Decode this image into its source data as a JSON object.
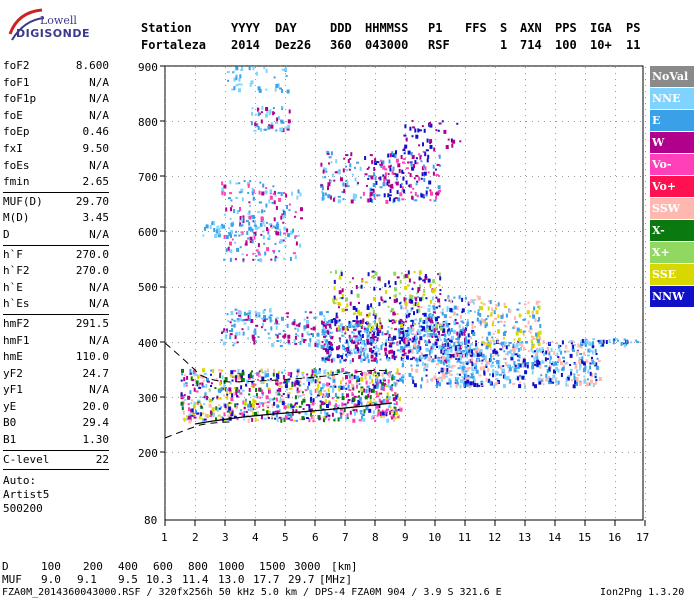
{
  "logo": {
    "company": "Lowell",
    "product": "DIGISONDE"
  },
  "header": {
    "labels": [
      "Station",
      "YYYY",
      "DAY",
      "DDD",
      "HHMMSS",
      "P1",
      "FFS",
      "S",
      "AXN",
      "PPS",
      "IGA",
      "PS"
    ],
    "values": [
      "Fortaleza",
      "2014",
      "Dez26",
      "360",
      "043000",
      "RSF",
      "1",
      "714",
      "100",
      "10+",
      "11"
    ]
  },
  "params": {
    "group1": [
      {
        "name": "foF2",
        "value": "8.600"
      },
      {
        "name": "foF1",
        "value": "N/A"
      },
      {
        "name": "foF1p",
        "value": "N/A"
      },
      {
        "name": "foE",
        "value": "N/A"
      },
      {
        "name": "foEp",
        "value": "0.46"
      },
      {
        "name": "fxI",
        "value": "9.50"
      },
      {
        "name": "foEs",
        "value": "N/A"
      },
      {
        "name": "fmin",
        "value": "2.65"
      }
    ],
    "group2": [
      {
        "name": "MUF(D)",
        "value": "29.70"
      },
      {
        "name": "M(D)",
        "value": "3.45"
      },
      {
        "name": "D",
        "value": "N/A"
      }
    ],
    "group3": [
      {
        "name": "h`F",
        "value": "270.0"
      },
      {
        "name": "h`F2",
        "value": "270.0"
      },
      {
        "name": "h`E",
        "value": "N/A"
      },
      {
        "name": "h`Es",
        "value": "N/A"
      }
    ],
    "group4": [
      {
        "name": "hmF2",
        "value": "291.5"
      },
      {
        "name": "hmF1",
        "value": "N/A"
      },
      {
        "name": "hmE",
        "value": "110.0"
      },
      {
        "name": "yF2",
        "value": "24.7"
      },
      {
        "name": "yF1",
        "value": "N/A"
      },
      {
        "name": "yE",
        "value": "20.0"
      },
      {
        "name": "B0",
        "value": "29.4"
      },
      {
        "name": "B1",
        "value": "1.30"
      }
    ],
    "group5": [
      {
        "name": "C-level",
        "value": "22"
      }
    ],
    "auto": [
      "Auto:",
      "Artist5",
      "500200"
    ]
  },
  "plot": {
    "y_ticks": [
      "900",
      "800",
      "700",
      "600",
      "500",
      "400",
      "300",
      "200",
      "80"
    ],
    "x_ticks": [
      "1",
      "2",
      "3",
      "4",
      "5",
      "6",
      "7",
      "8",
      "9",
      "10",
      "11",
      "12",
      "13",
      "14",
      "15",
      "16",
      "17"
    ]
  },
  "legend": [
    {
      "label": "NoVal",
      "color": "#8a8a8a"
    },
    {
      "label": "NNE",
      "color": "#7fd4ff"
    },
    {
      "label": "E",
      "color": "#3aa0e8"
    },
    {
      "label": "W",
      "color": "#b0008c"
    },
    {
      "label": "Vo-",
      "color": "#ff40b8"
    },
    {
      "label": "Vo+",
      "color": "#ff1050"
    },
    {
      "label": "SSW",
      "color": "#ffb8b0"
    },
    {
      "label": "X-",
      "color": "#0a7a10"
    },
    {
      "label": "X+",
      "color": "#90d860"
    },
    {
      "label": "SSE",
      "color": "#d8d800"
    },
    {
      "label": "NNW",
      "color": "#1010c8"
    }
  ],
  "bottom": {
    "d_label": "D",
    "d_values": [
      "100",
      "200",
      "400",
      "600",
      "800",
      "1000",
      "1500",
      "3000",
      "[km]"
    ],
    "muf_label": "MUF",
    "muf_values": [
      "9.0",
      "9.1",
      "9.5",
      "10.3",
      "11.4",
      "13.0",
      "17.7",
      "29.7",
      "[MHz]"
    ],
    "footer": "FZA0M_2014360043000.RSF / 320fx256h 50 kHz 5.0 km / DPS-4 FZA0M 904 / 3.9 S 321.6 E",
    "version": "Ion2Png 1.3.20"
  }
}
